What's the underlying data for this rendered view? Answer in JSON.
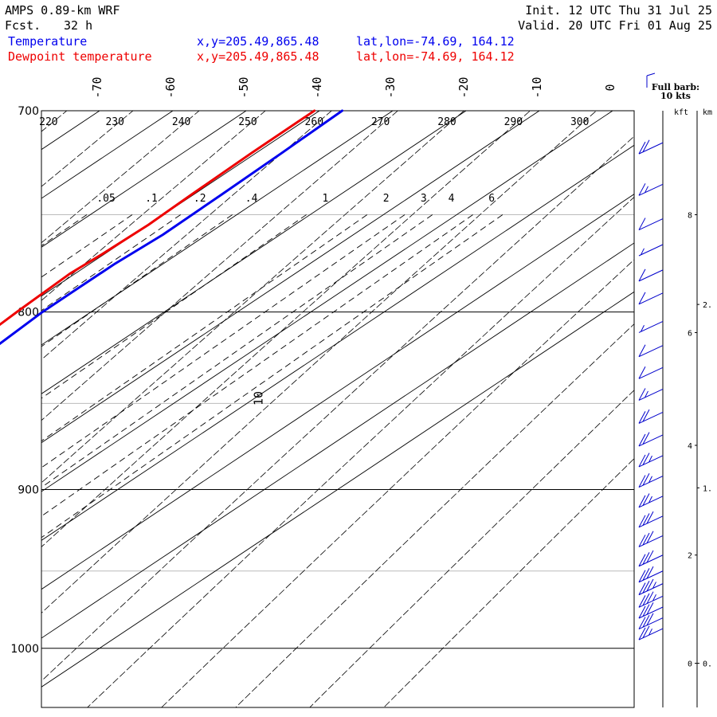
{
  "header": {
    "model": "AMPS 0.89-km WRF",
    "fcst_label": "Fcst.",
    "fcst_value": "32 h",
    "init": "Init. 12 UTC Thu 31 Jul 25",
    "valid": "Valid. 20 UTC Fri 01 Aug 25",
    "legend": [
      {
        "name": "Temperature",
        "coords": "x,y=205.49,865.48",
        "latlon": "lat,lon=-74.69, 164.12",
        "color": "#0000ee"
      },
      {
        "name": "Dewpoint temperature",
        "coords": "x,y=205.49,865.48",
        "latlon": "lat,lon=-74.69, 164.12",
        "color": "#ee0000"
      }
    ]
  },
  "barb_note": {
    "line1": "Full barb:",
    "line2": "10 kts"
  },
  "chart_data": {
    "type": "line",
    "diagram": "skew-T log-P",
    "pressure_range": [
      700,
      1040
    ],
    "pressure_ticks": [
      "700",
      "800",
      "900",
      "1000"
    ],
    "temperature_ticks": [
      "-70",
      "-60",
      "-50",
      "-40",
      "-30",
      "-20",
      "-10",
      "0",
      "10"
    ],
    "dry_adiabat_labels": [
      "220",
      "230",
      "240",
      "250",
      "260",
      "270",
      "280",
      "290",
      "300"
    ],
    "mixing_ratio_labels": [
      ".05",
      ".1",
      ".2",
      ".4",
      "1",
      "2",
      "3",
      "4",
      "6"
    ],
    "height_axis": {
      "kft_label": "kft",
      "km_label": "km",
      "kft_ticks": [
        {
          "label": "8",
          "p": 750
        },
        {
          "label": "6",
          "p": 811
        },
        {
          "label": "4",
          "p": 874
        },
        {
          "label": "2",
          "p": 940
        },
        {
          "label": "0",
          "p": 1010
        }
      ],
      "km_ticks": [
        {
          "label": "2.",
          "p": 796
        },
        {
          "label": "1.",
          "p": 899
        },
        {
          "label": "0.",
          "p": 1010
        }
      ]
    },
    "series": [
      {
        "name": "Temperature",
        "color": "#0000ee",
        "points": [
          [
            700,
            -36.9
          ],
          [
            720,
            -36.5
          ],
          [
            740,
            -36.2
          ],
          [
            760,
            -36.0
          ],
          [
            775,
            -36.6
          ],
          [
            790,
            -36.6
          ],
          [
            800,
            -36.6
          ],
          [
            820,
            -35.8
          ],
          [
            840,
            -34.9
          ],
          [
            860,
            -33.9
          ],
          [
            880,
            -32.8
          ],
          [
            900,
            -31.6
          ],
          [
            920,
            -30.4
          ],
          [
            940,
            -29.4
          ],
          [
            950,
            -29.1
          ],
          [
            960,
            -29.2
          ],
          [
            970,
            -29.3
          ],
          [
            978,
            -29.0
          ]
        ]
      },
      {
        "name": "Dewpoint temperature",
        "color": "#ee0000",
        "points": [
          [
            700,
            -40.7
          ],
          [
            720,
            -40.6
          ],
          [
            740,
            -40.3
          ],
          [
            755,
            -40.0
          ],
          [
            770,
            -40.3
          ],
          [
            780,
            -40.7
          ],
          [
            800,
            -40.1
          ],
          [
            820,
            -39.3
          ],
          [
            840,
            -38.2
          ],
          [
            860,
            -37.2
          ],
          [
            880,
            -36.4
          ],
          [
            900,
            -35.5
          ],
          [
            920,
            -34.6
          ],
          [
            940,
            -34.1
          ],
          [
            950,
            -34.1
          ],
          [
            960,
            -34.1
          ],
          [
            970,
            -34.0
          ],
          [
            978,
            -33.5
          ]
        ]
      }
    ],
    "wind_barbs": [
      {
        "p": 715,
        "flags": 0,
        "full": 2,
        "half": 0
      },
      {
        "p": 735,
        "flags": 0,
        "full": 1,
        "half": 1
      },
      {
        "p": 752,
        "flags": 0,
        "full": 1,
        "half": 0
      },
      {
        "p": 765,
        "flags": 0,
        "full": 0,
        "half": 1
      },
      {
        "p": 778,
        "flags": 0,
        "full": 1,
        "half": 0
      },
      {
        "p": 790,
        "flags": 0,
        "full": 1,
        "half": 0
      },
      {
        "p": 805,
        "flags": 0,
        "full": 0,
        "half": 1
      },
      {
        "p": 818,
        "flags": 0,
        "full": 1,
        "half": 0
      },
      {
        "p": 830,
        "flags": 0,
        "full": 1,
        "half": 0
      },
      {
        "p": 842,
        "flags": 0,
        "full": 1,
        "half": 1
      },
      {
        "p": 855,
        "flags": 0,
        "full": 2,
        "half": 0
      },
      {
        "p": 868,
        "flags": 0,
        "full": 2,
        "half": 0
      },
      {
        "p": 880,
        "flags": 0,
        "full": 2,
        "half": 1
      },
      {
        "p": 892,
        "flags": 0,
        "full": 2,
        "half": 1
      },
      {
        "p": 904,
        "flags": 0,
        "full": 2,
        "half": 1
      },
      {
        "p": 916,
        "flags": 0,
        "full": 3,
        "half": 0
      },
      {
        "p": 928,
        "flags": 0,
        "full": 3,
        "half": 0
      },
      {
        "p": 940,
        "flags": 0,
        "full": 3,
        "half": 0
      },
      {
        "p": 950,
        "flags": 0,
        "full": 3,
        "half": 0
      },
      {
        "p": 958,
        "flags": 0,
        "full": 3,
        "half": 1
      },
      {
        "p": 966,
        "flags": 0,
        "full": 3,
        "half": 1
      },
      {
        "p": 973,
        "flags": 0,
        "full": 3,
        "half": 0
      },
      {
        "p": 980,
        "flags": 0,
        "full": 3,
        "half": 0
      },
      {
        "p": 987,
        "flags": 0,
        "full": 2,
        "half": 1
      }
    ]
  }
}
